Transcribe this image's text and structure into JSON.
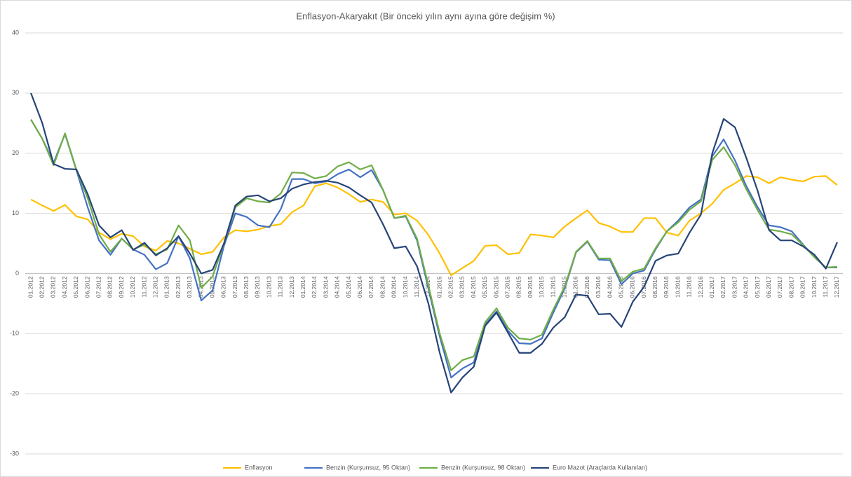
{
  "chart_data": {
    "type": "line",
    "title": "Enflasyon-Akaryakıt (Bir önceki yılın aynı ayına göre değişim %)",
    "categories": [
      "01.2012",
      "02.2012",
      "03.2012",
      "04.2012",
      "05.2012",
      "06.2012",
      "07.2012",
      "08.2012",
      "09.2012",
      "10.2012",
      "11.2012",
      "12.2012",
      "01.2013",
      "02.2013",
      "03.2013",
      "04.2013",
      "05.2013",
      "06.2013",
      "07.2013",
      "08.2013",
      "09.2013",
      "10.2013",
      "11.2013",
      "12.2013",
      "01.2014",
      "02.2014",
      "03.2014",
      "04.2014",
      "05.2014",
      "06.2014",
      "07.2014",
      "08.2014",
      "09.2014",
      "10.2014",
      "11.2014",
      "12.2014",
      "01.2015",
      "02.2015",
      "03.2015",
      "04.2015",
      "05.2015",
      "06.2015",
      "07.2015",
      "08.2015",
      "09.2015",
      "10.2015",
      "11.2015",
      "12.2015",
      "01.2016",
      "02.2016",
      "03.2016",
      "04.2016",
      "05.2016",
      "06.2016",
      "07.2016",
      "08.2016",
      "09.2016",
      "10.2016",
      "11.2016",
      "12.2016",
      "01.2017",
      "02.2017",
      "03.2017",
      "04.2017",
      "05.2017",
      "06.2017",
      "07.2017",
      "08.2017",
      "09.2017",
      "10.2017",
      "11.2017",
      "12.2017"
    ],
    "series": [
      {
        "name": "Enflasyon",
        "color": "#ffc000",
        "values": [
          12.3,
          11.3,
          10.4,
          11.4,
          9.5,
          9.0,
          6.8,
          5.7,
          6.6,
          6.2,
          4.5,
          3.8,
          5.4,
          5.0,
          4.1,
          3.2,
          3.6,
          6.0,
          7.2,
          7.0,
          7.3,
          7.9,
          8.2,
          10.2,
          11.3,
          14.5,
          15.0,
          14.3,
          13.2,
          11.9,
          12.3,
          11.9,
          9.8,
          10.0,
          8.8,
          6.4,
          3.3,
          -0.3,
          0.9,
          2.1,
          4.6,
          4.7,
          3.2,
          3.4,
          6.5,
          6.3,
          6.0,
          7.8,
          9.2,
          10.5,
          8.4,
          7.8,
          6.9,
          6.9,
          9.2,
          9.2,
          6.8,
          6.3,
          8.8,
          10.0,
          11.6,
          13.9,
          15.0,
          16.2,
          16.0,
          15.0,
          16.0,
          15.6,
          15.3,
          16.1,
          16.2,
          14.7
        ]
      },
      {
        "name": "Benzin (Kurşunsuz, 95 Oktan)",
        "color": "#4472c4",
        "values": [
          25.6,
          22.4,
          18.4,
          23.2,
          17.2,
          11.0,
          5.5,
          3.1,
          5.8,
          4.0,
          3.1,
          0.7,
          1.7,
          6.2,
          2.5,
          -4.5,
          -2.8,
          4.6,
          10.0,
          9.4,
          8.0,
          7.7,
          10.7,
          15.7,
          15.7,
          15.0,
          15.3,
          16.5,
          17.3,
          16.0,
          17.2,
          13.9,
          9.2,
          9.5,
          5.5,
          -2.5,
          -10.5,
          -17.3,
          -15.8,
          -14.8,
          -8.5,
          -6.3,
          -9.5,
          -11.6,
          -11.7,
          -10.8,
          -6.5,
          -2.5,
          3.5,
          5.3,
          2.3,
          2.2,
          -1.8,
          0.0,
          0.5,
          4.0,
          7.0,
          8.8,
          11.0,
          12.3,
          19.5,
          22.3,
          18.8,
          14.5,
          11.0,
          8.0,
          7.7,
          7.0,
          4.8,
          2.7,
          1.0,
          1.0
        ]
      },
      {
        "name": "Benzin (Kurşunsuz, 98 Oktan)",
        "color": "#70ad47",
        "values": [
          25.6,
          22.4,
          18.0,
          23.3,
          17.3,
          12.5,
          6.5,
          3.6,
          5.8,
          4.0,
          4.8,
          3.2,
          4.0,
          8.0,
          5.5,
          -2.4,
          -0.5,
          5.0,
          11.0,
          12.5,
          12.0,
          11.8,
          13.3,
          16.8,
          16.7,
          15.8,
          16.2,
          17.8,
          18.5,
          17.3,
          18.0,
          13.9,
          9.2,
          9.6,
          5.8,
          -2.0,
          -10.0,
          -16.1,
          -14.4,
          -13.8,
          -8.1,
          -5.8,
          -9.0,
          -10.8,
          -11.0,
          -10.2,
          -6.0,
          -2.2,
          3.6,
          5.4,
          2.5,
          2.5,
          -1.3,
          0.3,
          0.8,
          4.2,
          7.0,
          8.5,
          10.6,
          12.0,
          18.9,
          21.0,
          18.0,
          14.0,
          10.5,
          7.3,
          7.0,
          6.5,
          4.7,
          2.7,
          1.0,
          1.1
        ]
      },
      {
        "name": "Euro Mazot (Araçlarda Kullanılan)",
        "color": "#264478",
        "values": [
          30.0,
          25.0,
          18.2,
          17.4,
          17.3,
          13.2,
          8.0,
          6.0,
          7.2,
          3.9,
          5.1,
          3.0,
          4.2,
          6.2,
          3.3,
          0.0,
          0.6,
          5.0,
          11.3,
          12.8,
          13.0,
          12.0,
          12.5,
          14.1,
          14.8,
          15.2,
          15.4,
          15.1,
          14.3,
          13.0,
          11.8,
          8.2,
          4.2,
          4.5,
          1.2,
          -5.0,
          -13.2,
          -19.8,
          -17.3,
          -15.5,
          -8.7,
          -6.5,
          -9.8,
          -13.2,
          -13.2,
          -11.7,
          -9.0,
          -7.3,
          -3.5,
          -3.7,
          -6.8,
          -6.7,
          -8.9,
          -4.7,
          -2.2,
          2.1,
          3.0,
          3.3,
          6.8,
          9.8,
          20.0,
          25.7,
          24.3,
          19.2,
          13.7,
          7.2,
          5.5,
          5.5,
          4.5,
          3.1,
          0.8,
          5.2
        ]
      }
    ],
    "ylim": [
      -30,
      40
    ],
    "yticks": [
      -30,
      -20,
      -10,
      0,
      10,
      20,
      30,
      40
    ],
    "grid": true,
    "legend": "bottom"
  }
}
